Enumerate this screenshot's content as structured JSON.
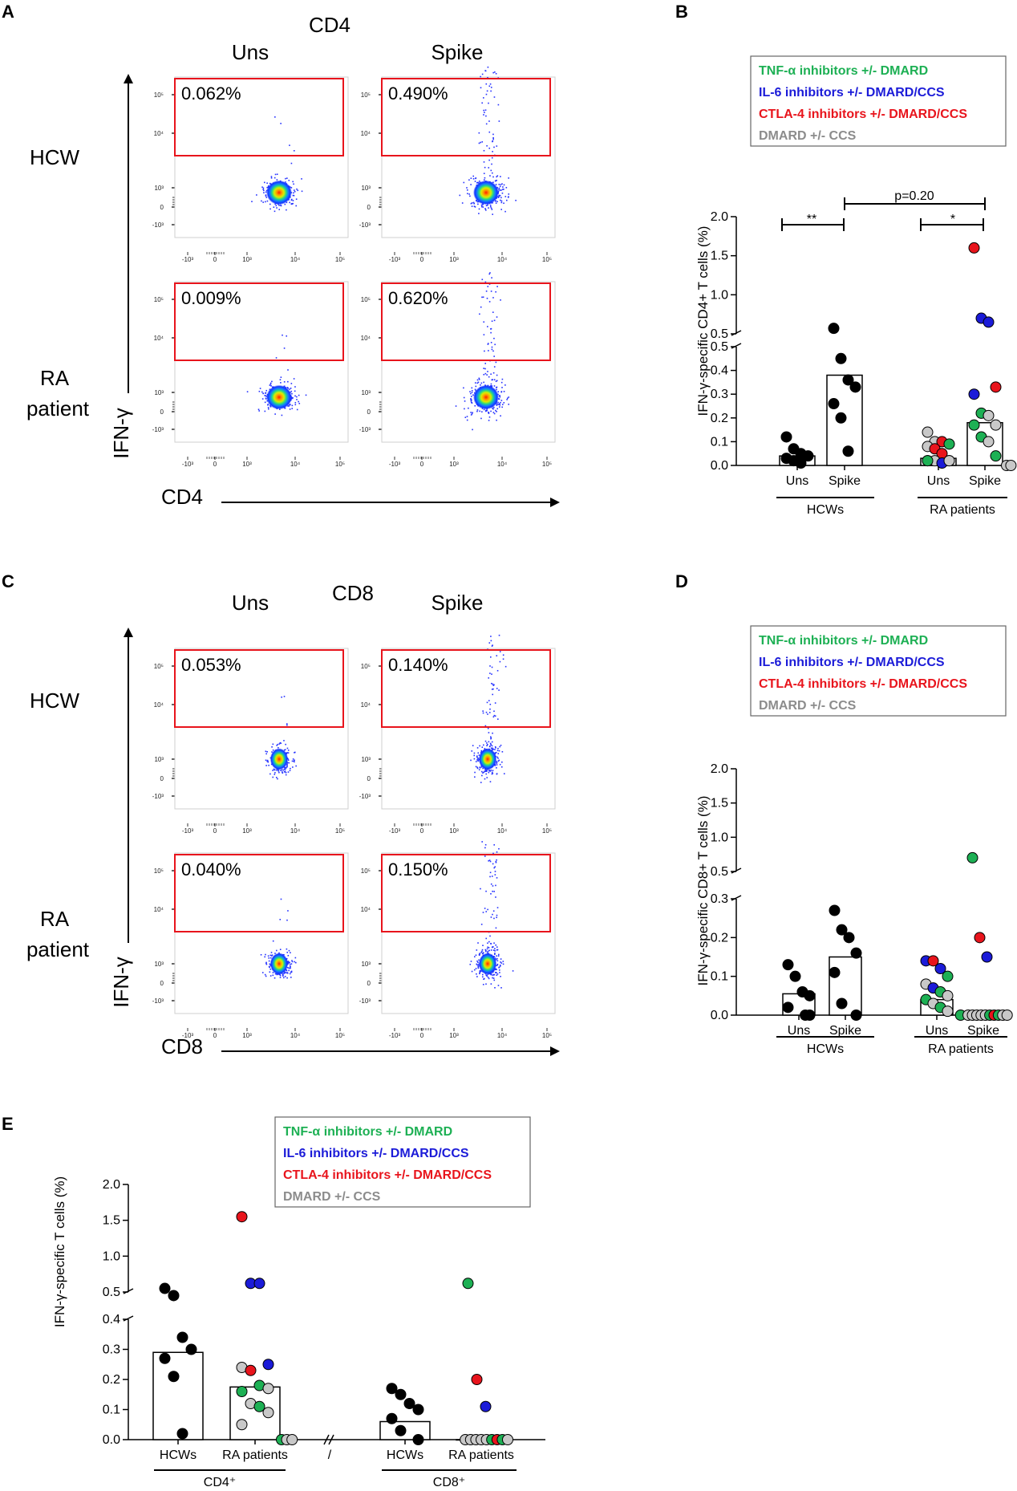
{
  "chart_data": [
    {
      "panel": "A",
      "type": "scatter",
      "title": "CD4",
      "columns": [
        "Uns",
        "Spike"
      ],
      "rows": [
        "HCW",
        "RA patient"
      ],
      "xlabel": "CD4",
      "ylabel": "IFN-γ",
      "x_ticks": [
        "-10³",
        "0",
        "10³",
        "10⁴",
        "10⁵"
      ],
      "y_ticks": [
        "10⁵",
        "10⁴",
        "10³",
        "0",
        "-10³"
      ],
      "gates": [
        {
          "row": "HCW",
          "col": "Uns",
          "percent": "0.062%"
        },
        {
          "row": "HCW",
          "col": "Spike",
          "percent": "0.490%"
        },
        {
          "row": "RA patient",
          "col": "Uns",
          "percent": "0.009%"
        },
        {
          "row": "RA patient",
          "col": "Spike",
          "percent": "0.620%"
        }
      ]
    },
    {
      "panel": "B",
      "type": "bar",
      "ylabel": "IFN-γ-specific CD4+ T cells (%)",
      "categories": [
        "Uns",
        "Spike",
        "Uns",
        "Spike"
      ],
      "groups": [
        "HCWs",
        "RA patients"
      ],
      "y_ticks_lower": [
        "0.0",
        "0.1",
        "0.2",
        "0.3",
        "0.4",
        "0.5"
      ],
      "y_ticks_upper": [
        "0.5",
        "1.0",
        "1.5",
        "2.0"
      ],
      "bars": [
        0.04,
        0.38,
        0.03,
        0.18
      ],
      "points": {
        "HCW_Uns": [
          0.12,
          0.07,
          0.05,
          0.04,
          0.03,
          0.02,
          0.01
        ],
        "HCW_Spike": [
          0.57,
          0.45,
          0.36,
          0.33,
          0.26,
          0.2,
          0.06
        ],
        "RA_Uns": [
          {
            "v": 0.14,
            "g": "DMARD"
          },
          {
            "v": 0.1,
            "g": "DMARD"
          },
          {
            "v": 0.1,
            "g": "CTLA4"
          },
          {
            "v": 0.09,
            "g": "TNF"
          },
          {
            "v": 0.08,
            "g": "DMARD"
          },
          {
            "v": 0.07,
            "g": "CTLA4"
          },
          {
            "v": 0.05,
            "g": "CTLA4"
          },
          {
            "v": 0.02,
            "g": "TNF"
          },
          {
            "v": 0.02,
            "g": "TNF"
          },
          {
            "v": 0.02,
            "g": "DMARD"
          },
          {
            "v": 0.01,
            "g": "IL6"
          },
          {
            "v": 0.02,
            "g": "DMARD"
          },
          {
            "v": 0.02,
            "g": "TNF"
          }
        ],
        "RA_Spike": [
          {
            "v": 1.6,
            "g": "CTLA4"
          },
          {
            "v": 0.7,
            "g": "IL6"
          },
          {
            "v": 0.65,
            "g": "IL6"
          },
          {
            "v": 0.33,
            "g": "CTLA4"
          },
          {
            "v": 0.3,
            "g": "IL6"
          },
          {
            "v": 0.22,
            "g": "TNF"
          },
          {
            "v": 0.21,
            "g": "DMARD"
          },
          {
            "v": 0.17,
            "g": "DMARD"
          },
          {
            "v": 0.17,
            "g": "TNF"
          },
          {
            "v": 0.12,
            "g": "TNF"
          },
          {
            "v": 0.1,
            "g": "DMARD"
          },
          {
            "v": 0.04,
            "g": "TNF"
          },
          {
            "v": 0.0,
            "g": "DMARD"
          },
          {
            "v": 0.0,
            "g": "DMARD"
          }
        ]
      },
      "annotations": [
        "**",
        "*",
        "p=0.20"
      ]
    },
    {
      "panel": "C",
      "type": "scatter",
      "title": "CD8",
      "columns": [
        "Uns",
        "Spike"
      ],
      "rows": [
        "HCW",
        "RA patient"
      ],
      "xlabel": "CD8",
      "ylabel": "IFN-γ",
      "x_ticks": [
        "-10³",
        "0",
        "10³",
        "10⁴",
        "10⁵"
      ],
      "y_ticks": [
        "10⁵",
        "10⁴",
        "10³",
        "0",
        "-10³"
      ],
      "gates": [
        {
          "row": "HCW",
          "col": "Uns",
          "percent": "0.053%"
        },
        {
          "row": "HCW",
          "col": "Spike",
          "percent": "0.140%"
        },
        {
          "row": "RA patient",
          "col": "Uns",
          "percent": "0.040%"
        },
        {
          "row": "RA patient",
          "col": "Spike",
          "percent": "0.150%"
        }
      ]
    },
    {
      "panel": "D",
      "type": "bar",
      "ylabel": "IFN-γ-specific CD8+ T cells (%)",
      "categories": [
        "Uns",
        "Spike",
        "Uns",
        "Spike"
      ],
      "groups": [
        "HCWs",
        "RA patients"
      ],
      "y_ticks_lower": [
        "0.0",
        "0.1",
        "0.2",
        "0.3"
      ],
      "y_ticks_upper": [
        "0.5",
        "1.0",
        "1.5",
        "2.0"
      ],
      "bars": [
        0.055,
        0.15,
        0.04,
        0.0
      ],
      "points": {
        "HCW_Uns": [
          0.13,
          0.1,
          0.06,
          0.05,
          0.02,
          0.0,
          0.0
        ],
        "HCW_Spike": [
          0.27,
          0.22,
          0.2,
          0.16,
          0.11,
          0.03,
          0.0
        ],
        "RA_Uns": [
          {
            "v": 0.14,
            "g": "IL6"
          },
          {
            "v": 0.14,
            "g": "CTLA4"
          },
          {
            "v": 0.12,
            "g": "IL6"
          },
          {
            "v": 0.1,
            "g": "TNF"
          },
          {
            "v": 0.08,
            "g": "DMARD"
          },
          {
            "v": 0.07,
            "g": "IL6"
          },
          {
            "v": 0.06,
            "g": "TNF"
          },
          {
            "v": 0.05,
            "g": "DMARD"
          },
          {
            "v": 0.04,
            "g": "TNF"
          },
          {
            "v": 0.03,
            "g": "DMARD"
          },
          {
            "v": 0.02,
            "g": "TNF"
          },
          {
            "v": 0.01,
            "g": "DMARD"
          },
          {
            "v": 0.0,
            "g": "TNF"
          }
        ],
        "RA_Spike": [
          {
            "v": 0.7,
            "g": "TNF"
          },
          {
            "v": 0.2,
            "g": "CTLA4"
          },
          {
            "v": 0.15,
            "g": "IL6"
          },
          {
            "v": 0.0,
            "g": "DMARD"
          },
          {
            "v": 0.0,
            "g": "DMARD"
          },
          {
            "v": 0.0,
            "g": "DMARD"
          },
          {
            "v": 0.0,
            "g": "DMARD"
          },
          {
            "v": 0.0,
            "g": "DMARD"
          },
          {
            "v": 0.0,
            "g": "TNF"
          },
          {
            "v": 0.0,
            "g": "CTLA4"
          },
          {
            "v": 0.0,
            "g": "TNF"
          },
          {
            "v": 0.0,
            "g": "DMARD"
          },
          {
            "v": 0.0,
            "g": "DMARD"
          }
        ]
      }
    },
    {
      "panel": "E",
      "type": "bar",
      "ylabel": "IFN-γ-specific  T cells (%)",
      "categories": [
        "HCWs",
        "RA patients",
        "HCWs",
        "RA patients"
      ],
      "groups": [
        "CD4⁺",
        "CD8⁺"
      ],
      "separator": "/",
      "y_ticks_lower": [
        "0.0",
        "0.1",
        "0.2",
        "0.3",
        "0.4"
      ],
      "y_ticks_upper": [
        "0.5",
        "1.0",
        "1.5",
        "2.0"
      ],
      "bars": [
        0.29,
        0.175,
        0.06,
        0.0
      ],
      "points": {
        "CD4_HCW": [
          0.55,
          0.45,
          0.34,
          0.3,
          0.27,
          0.21,
          0.02
        ],
        "CD4_RA": [
          {
            "v": 1.55,
            "g": "CTLA4"
          },
          {
            "v": 0.62,
            "g": "IL6"
          },
          {
            "v": 0.62,
            "g": "IL6"
          },
          {
            "v": 0.25,
            "g": "IL6"
          },
          {
            "v": 0.24,
            "g": "DMARD"
          },
          {
            "v": 0.23,
            "g": "CTLA4"
          },
          {
            "v": 0.18,
            "g": "TNF"
          },
          {
            "v": 0.17,
            "g": "DMARD"
          },
          {
            "v": 0.16,
            "g": "TNF"
          },
          {
            "v": 0.12,
            "g": "DMARD"
          },
          {
            "v": 0.11,
            "g": "TNF"
          },
          {
            "v": 0.09,
            "g": "DMARD"
          },
          {
            "v": 0.05,
            "g": "DMARD"
          },
          {
            "v": 0.0,
            "g": "TNF"
          },
          {
            "v": 0.0,
            "g": "DMARD"
          },
          {
            "v": 0.0,
            "g": "DMARD"
          }
        ],
        "CD8_HCW": [
          0.17,
          0.15,
          0.12,
          0.1,
          0.07,
          0.03,
          0.0
        ],
        "CD8_RA": [
          {
            "v": 0.62,
            "g": "TNF"
          },
          {
            "v": 0.2,
            "g": "CTLA4"
          },
          {
            "v": 0.11,
            "g": "IL6"
          },
          {
            "v": 0.0,
            "g": "DMARD"
          },
          {
            "v": 0.0,
            "g": "DMARD"
          },
          {
            "v": 0.0,
            "g": "DMARD"
          },
          {
            "v": 0.0,
            "g": "DMARD"
          },
          {
            "v": 0.0,
            "g": "DMARD"
          },
          {
            "v": 0.0,
            "g": "TNF"
          },
          {
            "v": 0.0,
            "g": "CTLA4"
          },
          {
            "v": 0.0,
            "g": "TNF"
          },
          {
            "v": 0.0,
            "g": "DMARD"
          }
        ]
      }
    }
  ],
  "legend": [
    {
      "key": "TNF",
      "label": "TNF-α inhibitors +/- DMARD",
      "color": "#1db054"
    },
    {
      "key": "IL6",
      "label": "IL-6 inhibitors +/- DMARD/CCS",
      "color": "#1b1bd8"
    },
    {
      "key": "CTLA4",
      "label": "CTLA-4 inhibitors +/- DMARD/CCS",
      "color": "#e8141c"
    },
    {
      "key": "DMARD",
      "label": "DMARD +/-  CCS",
      "color": "#8c8c8c"
    }
  ],
  "colors": {
    "gate": "#e8141c",
    "black_point": "#000000",
    "dmard_fill": "#c8c8c8"
  }
}
